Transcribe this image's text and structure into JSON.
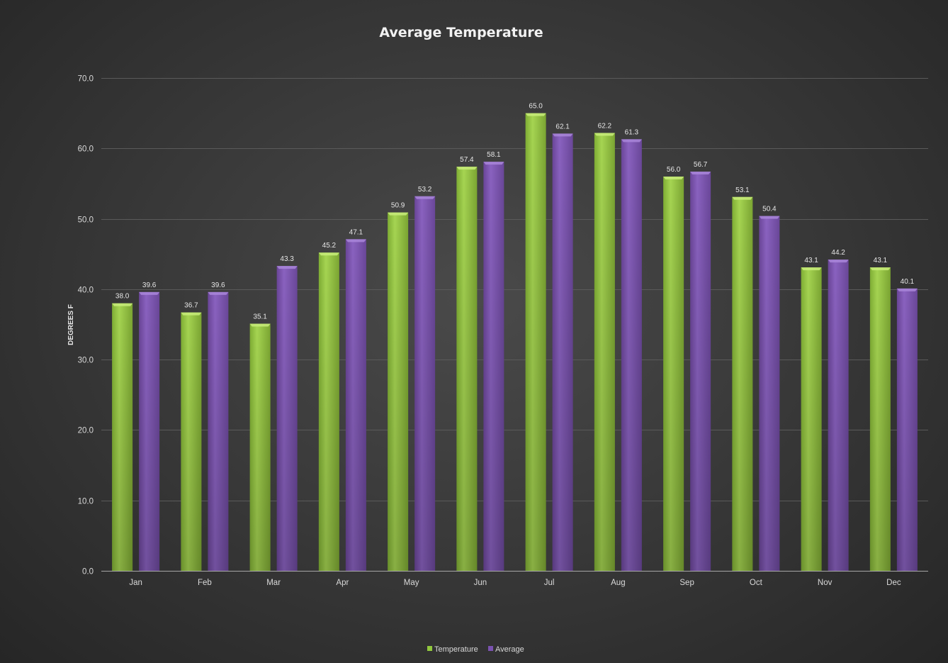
{
  "chart_data": {
    "type": "bar",
    "title": "Average Temperature",
    "xlabel": "",
    "ylabel": "DEGREES F",
    "ylim": [
      0,
      70
    ],
    "yticks": [
      "0.0",
      "10.0",
      "20.0",
      "30.0",
      "40.0",
      "50.0",
      "60.0",
      "70.0"
    ],
    "grid": true,
    "legend_position": "bottom",
    "categories": [
      "Jan",
      "Feb",
      "Mar",
      "Apr",
      "May",
      "Jun",
      "Jul",
      "Aug",
      "Sep",
      "Oct",
      "Nov",
      "Dec"
    ],
    "series": [
      {
        "name": "Temperature",
        "color": "#92c83e",
        "values": [
          38.0,
          36.7,
          35.1,
          45.2,
          50.9,
          57.4,
          65.0,
          62.2,
          56.0,
          53.1,
          43.1,
          43.1
        ],
        "labels": [
          "38.0",
          "36.7",
          "35.1",
          "45.2",
          "50.9",
          "57.4",
          "65.0",
          "62.2",
          "56.0",
          "53.1",
          "43.1",
          "43.1"
        ]
      },
      {
        "name": "Average",
        "color": "#7a52b0",
        "values": [
          39.6,
          39.6,
          43.3,
          47.1,
          53.2,
          58.1,
          62.1,
          61.3,
          56.7,
          50.4,
          44.2,
          40.1
        ],
        "labels": [
          "39.6",
          "39.6",
          "43.3",
          "47.1",
          "53.2",
          "58.1",
          "62.1",
          "61.3",
          "56.7",
          "50.4",
          "44.2",
          "40.1"
        ]
      }
    ]
  }
}
